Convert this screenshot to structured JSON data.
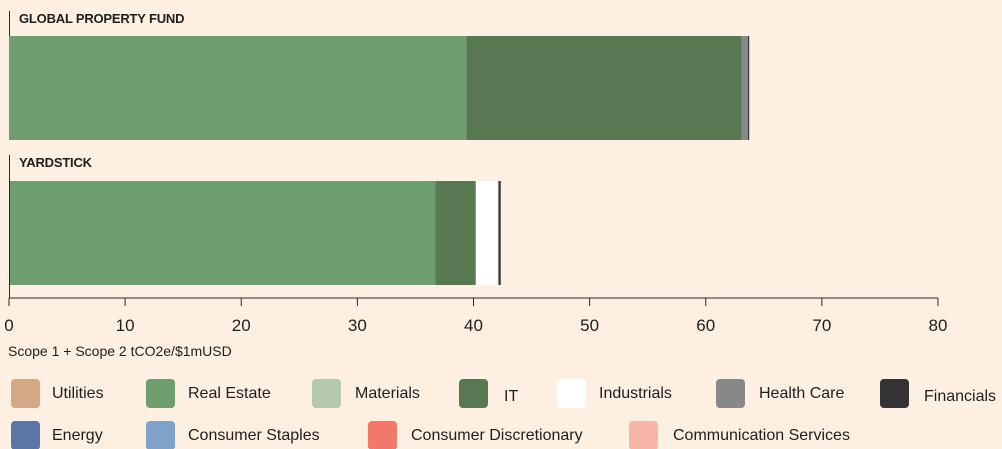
{
  "chart_data": {
    "type": "bar",
    "orientation": "horizontal",
    "stacked": true,
    "categories": [
      "GLOBAL PROPERTY FUND",
      "YARDSTICK"
    ],
    "series": [
      {
        "name": "Utilities",
        "color": "#d4a884",
        "values": [
          0,
          0
        ]
      },
      {
        "name": "Real Estate",
        "color": "#6f9e6e",
        "values": [
          39.4,
          36.7
        ]
      },
      {
        "name": "Materials",
        "color": "#b3c8ac",
        "values": [
          0,
          0
        ]
      },
      {
        "name": "IT",
        "color": "#587852",
        "values": [
          23.7,
          3.5
        ]
      },
      {
        "name": "Industrials",
        "color": "#ffffff",
        "values": [
          0,
          1.9
        ]
      },
      {
        "name": "Health Care",
        "color": "#888888",
        "values": [
          0.6,
          0.1
        ]
      },
      {
        "name": "Financials",
        "color": "#333333",
        "values": [
          0,
          0.1
        ]
      },
      {
        "name": "Energy",
        "color": "#5b76a4",
        "values": [
          0,
          0
        ]
      },
      {
        "name": "Consumer Staples",
        "color": "#7fa2c8",
        "values": [
          0,
          0
        ]
      },
      {
        "name": "Consumer Discretionary",
        "color": "#f1786b",
        "values": [
          0,
          0
        ]
      },
      {
        "name": "Communication Services",
        "color": "#f7b6a8",
        "values": [
          0,
          0
        ]
      }
    ],
    "xlim": [
      0,
      80
    ],
    "xticks": [
      "0",
      "10",
      "20",
      "30",
      "40",
      "50",
      "60",
      "70",
      "80"
    ],
    "xlabel": "Scope 1 + Scope 2 tCO2e/$1mUSD",
    "legend_position": "bottom",
    "grid": false
  }
}
